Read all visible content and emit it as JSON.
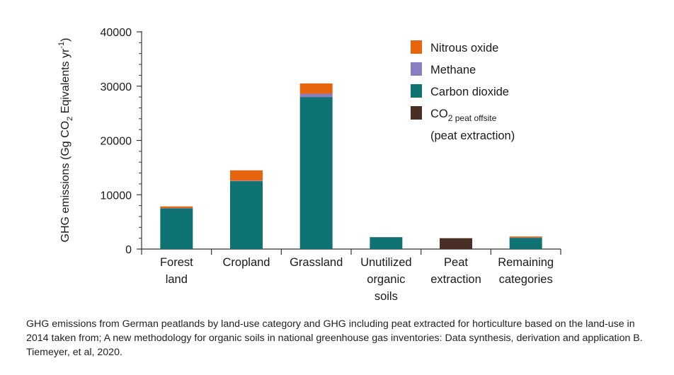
{
  "chart_data": {
    "type": "bar",
    "stacked": true,
    "categories": [
      [
        "Forest",
        "land"
      ],
      [
        "Cropland"
      ],
      [
        "Grassland"
      ],
      [
        "Unutilized",
        "organic",
        "soils"
      ],
      [
        "Peat",
        "extraction"
      ],
      [
        "Remaining",
        "categories"
      ]
    ],
    "series": [
      {
        "name": "CO2 peat offsite (peat extraction)",
        "color": "#4a2e25",
        "values": [
          0,
          0,
          0,
          0,
          2000,
          0
        ]
      },
      {
        "name": "Carbon dioxide",
        "color": "#0f7373",
        "values": [
          7500,
          12500,
          28000,
          2200,
          0,
          2100
        ]
      },
      {
        "name": "Methane",
        "color": "#8a7ec2",
        "values": [
          50,
          100,
          600,
          20,
          0,
          20
        ]
      },
      {
        "name": "Nitrous oxide",
        "color": "#e8650f",
        "values": [
          300,
          1900,
          1900,
          0,
          0,
          200
        ]
      }
    ],
    "ylabel": "GHG emissions (Gg CO2 Eqivalents yr-1)",
    "ylim": [
      0,
      40000
    ],
    "yticks": [
      "0",
      "10000",
      "20000",
      "30000",
      "40000"
    ],
    "grid": false,
    "legend_position": "top-right"
  },
  "legend": {
    "items": [
      {
        "label": "Nitrous oxide",
        "color": "#e8650f"
      },
      {
        "label": "Methane",
        "color": "#8a7ec2"
      },
      {
        "label": "Carbon dioxide",
        "color": "#0f7373"
      },
      {
        "label": "CO",
        "sub": "2 peat offsite",
        "label2": "(peat extraction)",
        "color": "#4a2e25"
      }
    ]
  },
  "ylabel_parts": {
    "a": "GHG emissions (Gg CO",
    "sub": "2",
    "b": " Eqivalents yr",
    "sup": "-1",
    "c": ")"
  },
  "caption": "GHG emissions from German peatlands by land-use category and GHG including peat extracted for horticulture based on the land-use in 2014 taken from; A new methodology for organic soils in national greenhouse gas inventories: Data synthesis, derivation and application B. Tiemeyer, et al, 2020."
}
